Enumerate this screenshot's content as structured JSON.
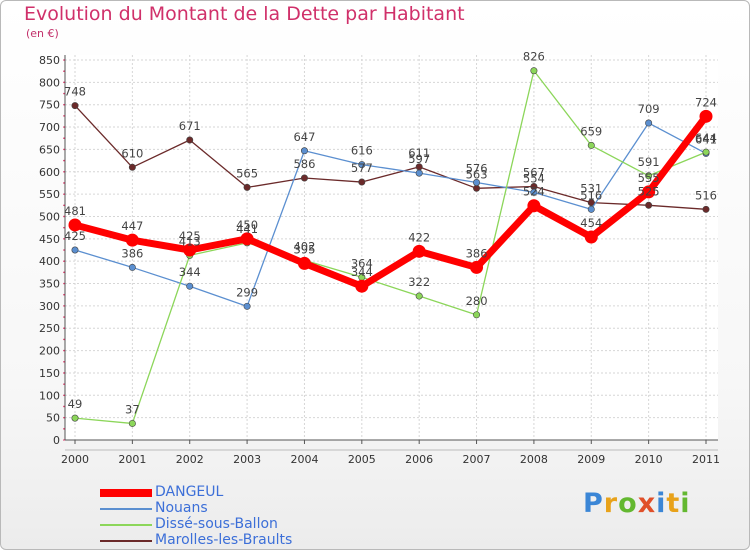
{
  "title": "Evolution du Montant de la Dette par Habitant",
  "subtitle": "(en €)",
  "brand": "Proxiti",
  "chart_data": {
    "type": "line",
    "title": "Evolution du Montant de la Dette par Habitant",
    "ylabel": "(en €)",
    "xlabel": "",
    "ylim": [
      0,
      850
    ],
    "yticks": [
      0,
      50,
      100,
      150,
      200,
      250,
      300,
      350,
      400,
      450,
      500,
      550,
      600,
      650,
      700,
      750,
      800,
      850
    ],
    "categories": [
      "2000",
      "2001",
      "2002",
      "2003",
      "2004",
      "2005",
      "2006",
      "2007",
      "2008",
      "2009",
      "2010",
      "2011"
    ],
    "grid": true,
    "legend_position": "bottom-left",
    "series": [
      {
        "name": "DANGEUL",
        "color": "#ff0000",
        "values": [
          481,
          447,
          425,
          450,
          395,
          344,
          422,
          386,
          524,
          454,
          555,
          724
        ]
      },
      {
        "name": "Nouans",
        "color": "#5b8fd0",
        "values": [
          425,
          386,
          344,
          299,
          647,
          616,
          597,
          576,
          554,
          516,
          709,
          641
        ]
      },
      {
        "name": "Dissé-sous-Ballon",
        "color": "#8cd65a",
        "values": [
          49,
          37,
          413,
          441,
          402,
          364,
          322,
          280,
          826,
          659,
          591,
          644
        ]
      },
      {
        "name": "Marolles-les-Braults",
        "color": "#6b2a2a",
        "values": [
          748,
          610,
          671,
          565,
          586,
          577,
          611,
          563,
          567,
          531,
          525,
          516
        ]
      }
    ]
  }
}
